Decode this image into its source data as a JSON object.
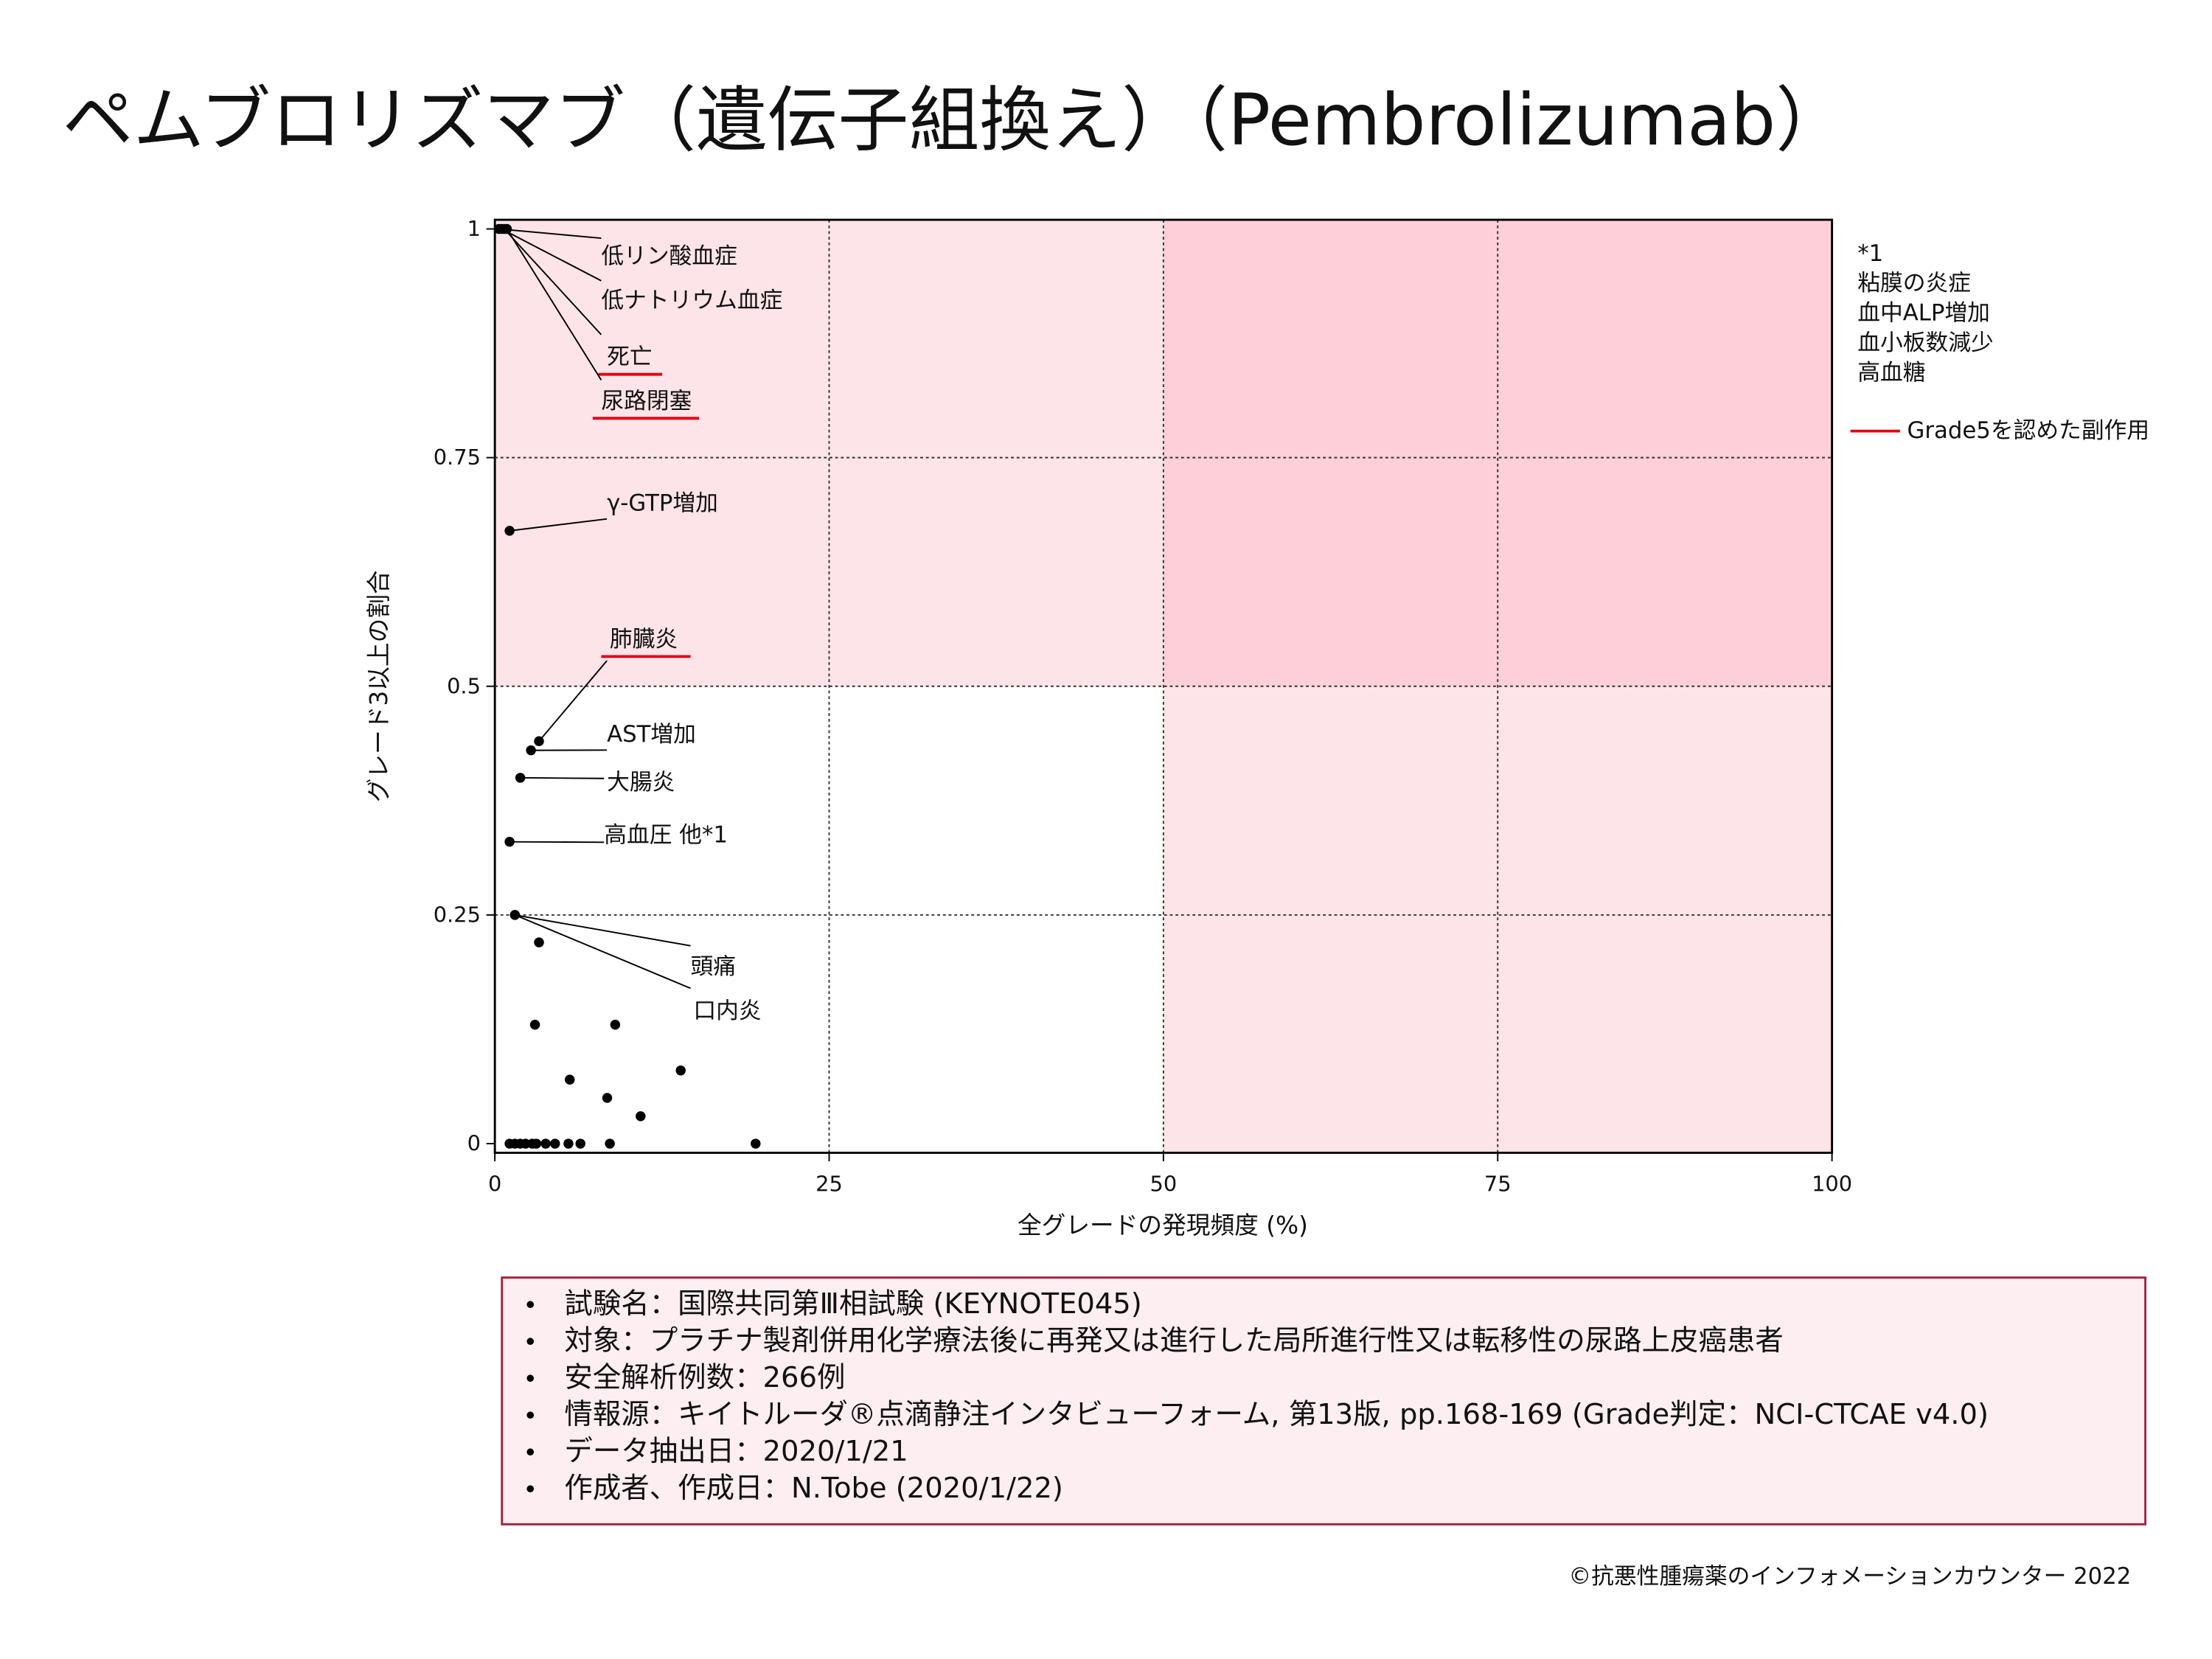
{
  "title": "ペムブロリズマブ（遺伝子組換え）（Pembrolizumab）",
  "chart_data": {
    "type": "scatter",
    "x_label": "全グレードの発現頻度 (%)",
    "y_label": "グレード3以上の割合",
    "xlim": [
      0,
      100
    ],
    "xticks": [
      0,
      25,
      50,
      75,
      100
    ],
    "ylim": [
      -0.01,
      1.01
    ],
    "yticks": [
      0,
      0.25,
      0.5,
      0.75,
      1
    ],
    "grid": true,
    "color": "#000000",
    "x": [
      0.3,
      0.5,
      0.7,
      0.9,
      1.1,
      3.3,
      2.7,
      1.9,
      1.1,
      1.5,
      1.5,
      3.3,
      3.0,
      9.0,
      5.6,
      8.4,
      13.9,
      10.9,
      1.1,
      1.5,
      1.9,
      2.3,
      2.8,
      3.1,
      3.8,
      4.5,
      5.5,
      6.4,
      8.6,
      19.5
    ],
    "values": [
      1,
      1,
      1,
      1,
      0.67,
      0.44,
      0.43,
      0.4,
      0.33,
      0.25,
      0.25,
      0.22,
      0.13,
      0.13,
      0.07,
      0.05,
      0.08,
      0.03,
      0,
      0,
      0,
      0,
      0,
      0,
      0,
      0,
      0,
      0,
      0,
      0
    ],
    "point_labels": [
      "低リン酸血症",
      "低ナトリウム血症",
      "死亡",
      "尿路閉塞",
      "γ-GTP増加",
      "肺臓炎",
      "AST増加",
      "大腸炎",
      "高血圧 他*1",
      "頭痛",
      "口内炎",
      null,
      null,
      null,
      null,
      null,
      null,
      null,
      null,
      null,
      null,
      null,
      null,
      null,
      null,
      null,
      null,
      null,
      null,
      null
    ],
    "grade5": [
      false,
      false,
      true,
      true,
      false,
      true,
      false,
      false,
      false,
      false,
      false,
      false,
      false,
      false,
      false,
      false,
      false,
      false,
      false,
      false,
      false,
      false,
      false,
      false,
      false,
      false,
      false,
      false,
      false,
      false
    ],
    "grade5_color": "#e60012",
    "legend": "Grade5を認めた副作用"
  },
  "note": {
    "marker": "*1",
    "items": [
      "粘膜の炎症",
      "血中ALP増加",
      "血小板数減少",
      "高血糖"
    ]
  },
  "info": [
    "試験名：国際共同第Ⅲ相試験 (KEYNOTE045)",
    "対象：プラチナ製剤併用化学療法後に再発又は進行した局所進行性又は転移性の尿路上皮癌患者",
    "安全解析例数：266例",
    "情報源：キイトルーダ®点滴静注インタビューフォーム, 第13版, pp.168-169 (Grade判定：NCI-CTCAE v4.0)",
    "データ抽出日：2020/1/21",
    "作成者、作成日：N.Tobe (2020/1/22)"
  ],
  "copyright": "©抗悪性腫瘍薬のインフォメーションカウンター 2022"
}
